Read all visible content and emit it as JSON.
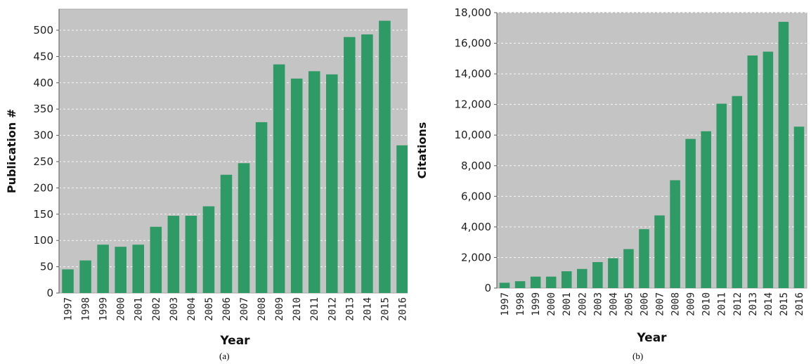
{
  "chart_data": [
    {
      "type": "bar",
      "categories": [
        "1997",
        "1998",
        "1999",
        "2000",
        "2001",
        "2002",
        "2003",
        "2004",
        "2005",
        "2006",
        "2007",
        "2008",
        "2009",
        "2010",
        "2011",
        "2012",
        "2013",
        "2014",
        "2015",
        "2016"
      ],
      "values": [
        45,
        62,
        92,
        88,
        92,
        126,
        147,
        147,
        165,
        225,
        247,
        325,
        435,
        408,
        422,
        416,
        487,
        492,
        518,
        281
      ],
      "title": "",
      "xlabel": "Year",
      "ylabel": "Publication #",
      "ylim": [
        0,
        500
      ],
      "yticks": [
        0,
        50,
        100,
        150,
        200,
        250,
        300,
        350,
        400,
        450,
        500
      ],
      "ytick_labels": [
        "0",
        "50",
        "100",
        "150",
        "200",
        "250",
        "300",
        "350",
        "400",
        "450",
        "500"
      ],
      "grid": true,
      "bar_color": "#2e9a66",
      "plot_background": "#c4c4c4",
      "caption": "(a)"
    },
    {
      "type": "bar",
      "categories": [
        "1997",
        "1998",
        "1999",
        "2000",
        "2001",
        "2002",
        "2003",
        "2004",
        "2005",
        "2006",
        "2007",
        "2008",
        "2009",
        "2010",
        "2011",
        "2012",
        "2013",
        "2014",
        "2015",
        "2016"
      ],
      "values": [
        350,
        450,
        750,
        750,
        1100,
        1250,
        1700,
        1950,
        2550,
        3850,
        4750,
        7050,
        9750,
        10250,
        12050,
        12550,
        15200,
        15450,
        17400,
        10550
      ],
      "title": "",
      "xlabel": "Year",
      "ylabel": "Citations",
      "ylim": [
        0,
        18000
      ],
      "yticks": [
        0,
        2000,
        4000,
        6000,
        8000,
        10000,
        12000,
        14000,
        16000,
        18000
      ],
      "ytick_labels": [
        "0",
        "2,000",
        "4,000",
        "6,000",
        "8,000",
        "10,000",
        "12,000",
        "14,000",
        "16,000",
        "18,000"
      ],
      "grid": true,
      "bar_color": "#2e9a66",
      "plot_background": "#c4c4c4",
      "caption": "(b)"
    }
  ]
}
